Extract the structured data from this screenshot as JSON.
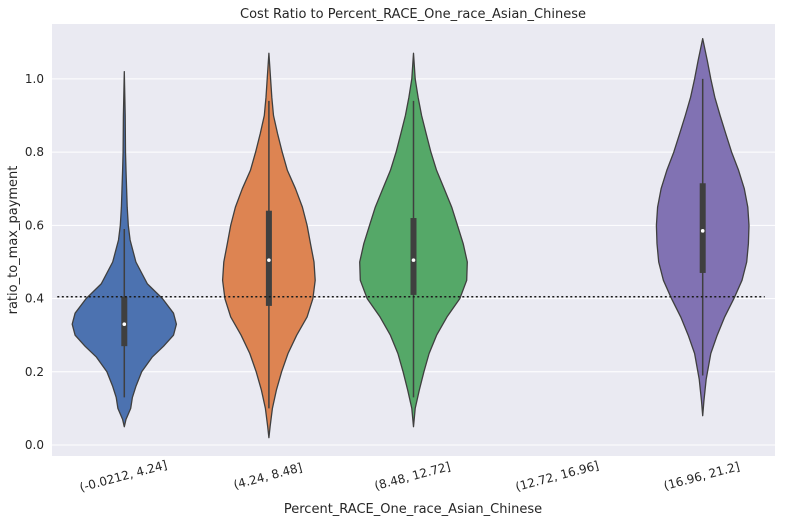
{
  "chart_data": {
    "type": "violin",
    "title": "Cost Ratio to Percent_RACE_One_race_Asian_Chinese",
    "xlabel": "Percent_RACE_One_race_Asian_Chinese",
    "ylabel": "ratio_to_max_payment",
    "categories": [
      "(-0.0212, 4.24]",
      "(4.24, 8.48]",
      "(8.48, 12.72]",
      "(12.72, 16.96]",
      "(16.96, 21.2]"
    ],
    "yticks": [
      "0.0",
      "0.2",
      "0.4",
      "0.6",
      "0.8",
      "1.0"
    ],
    "ylim": [
      -0.03,
      1.15
    ],
    "grid": true,
    "reference_line": {
      "y": 0.405,
      "style": "dotted"
    },
    "colors": [
      "#4c72b0",
      "#dd8452",
      "#55a868",
      "#8172b3"
    ],
    "background": "#eaeaf2",
    "violins": [
      {
        "category": "(-0.0212, 4.24]",
        "color": "#4c72b0",
        "min": 0.05,
        "max": 1.02,
        "q1": 0.27,
        "median": 0.33,
        "q3": 0.405,
        "whisker_low": 0.13,
        "whisker_high": 0.59,
        "profile": [
          [
            0.05,
            0.0
          ],
          [
            0.07,
            0.03
          ],
          [
            0.1,
            0.11
          ],
          [
            0.13,
            0.14
          ],
          [
            0.16,
            0.2
          ],
          [
            0.2,
            0.3
          ],
          [
            0.24,
            0.48
          ],
          [
            0.27,
            0.68
          ],
          [
            0.3,
            0.85
          ],
          [
            0.33,
            0.9
          ],
          [
            0.36,
            0.85
          ],
          [
            0.4,
            0.66
          ],
          [
            0.44,
            0.4
          ],
          [
            0.5,
            0.2
          ],
          [
            0.56,
            0.1
          ],
          [
            0.6,
            0.07
          ],
          [
            0.65,
            0.05
          ],
          [
            0.7,
            0.04
          ],
          [
            0.75,
            0.03
          ],
          [
            0.8,
            0.02
          ],
          [
            0.9,
            0.015
          ],
          [
            1.02,
            0.0
          ]
        ]
      },
      {
        "category": "(4.24, 8.48]",
        "color": "#dd8452",
        "min": 0.02,
        "max": 1.07,
        "q1": 0.38,
        "median": 0.505,
        "q3": 0.64,
        "whisker_low": 0.1,
        "whisker_high": 0.94,
        "profile": [
          [
            0.02,
            0.0
          ],
          [
            0.05,
            0.02
          ],
          [
            0.1,
            0.06
          ],
          [
            0.15,
            0.13
          ],
          [
            0.2,
            0.22
          ],
          [
            0.25,
            0.33
          ],
          [
            0.3,
            0.48
          ],
          [
            0.35,
            0.66
          ],
          [
            0.4,
            0.76
          ],
          [
            0.45,
            0.8
          ],
          [
            0.5,
            0.78
          ],
          [
            0.55,
            0.72
          ],
          [
            0.6,
            0.66
          ],
          [
            0.65,
            0.58
          ],
          [
            0.7,
            0.46
          ],
          [
            0.75,
            0.32
          ],
          [
            0.8,
            0.23
          ],
          [
            0.85,
            0.15
          ],
          [
            0.9,
            0.08
          ],
          [
            0.95,
            0.05
          ],
          [
            1.0,
            0.03
          ],
          [
            1.07,
            0.0
          ]
        ]
      },
      {
        "category": "(8.48, 12.72]",
        "color": "#55a868",
        "min": 0.05,
        "max": 1.07,
        "q1": 0.41,
        "median": 0.505,
        "q3": 0.62,
        "whisker_low": 0.13,
        "whisker_high": 0.94,
        "profile": [
          [
            0.05,
            0.0
          ],
          [
            0.1,
            0.03
          ],
          [
            0.15,
            0.1
          ],
          [
            0.2,
            0.18
          ],
          [
            0.25,
            0.27
          ],
          [
            0.3,
            0.4
          ],
          [
            0.35,
            0.58
          ],
          [
            0.4,
            0.8
          ],
          [
            0.45,
            0.92
          ],
          [
            0.5,
            0.93
          ],
          [
            0.55,
            0.86
          ],
          [
            0.6,
            0.76
          ],
          [
            0.65,
            0.66
          ],
          [
            0.7,
            0.53
          ],
          [
            0.75,
            0.4
          ],
          [
            0.8,
            0.3
          ],
          [
            0.85,
            0.22
          ],
          [
            0.9,
            0.14
          ],
          [
            0.95,
            0.08
          ],
          [
            1.0,
            0.03
          ],
          [
            1.07,
            0.0
          ]
        ]
      },
      {
        "category": "(16.96, 21.2]",
        "color": "#8172b3",
        "min": 0.08,
        "max": 1.11,
        "q1": 0.47,
        "median": 0.585,
        "q3": 0.715,
        "whisker_low": 0.19,
        "whisker_high": 1.0,
        "profile": [
          [
            0.08,
            0.0
          ],
          [
            0.12,
            0.02
          ],
          [
            0.18,
            0.06
          ],
          [
            0.25,
            0.14
          ],
          [
            0.3,
            0.25
          ],
          [
            0.35,
            0.38
          ],
          [
            0.4,
            0.54
          ],
          [
            0.45,
            0.68
          ],
          [
            0.5,
            0.76
          ],
          [
            0.55,
            0.79
          ],
          [
            0.6,
            0.8
          ],
          [
            0.65,
            0.78
          ],
          [
            0.7,
            0.72
          ],
          [
            0.75,
            0.62
          ],
          [
            0.8,
            0.5
          ],
          [
            0.85,
            0.4
          ],
          [
            0.9,
            0.3
          ],
          [
            0.95,
            0.21
          ],
          [
            1.0,
            0.14
          ],
          [
            1.05,
            0.08
          ],
          [
            1.08,
            0.04
          ],
          [
            1.11,
            0.0
          ]
        ]
      }
    ]
  }
}
